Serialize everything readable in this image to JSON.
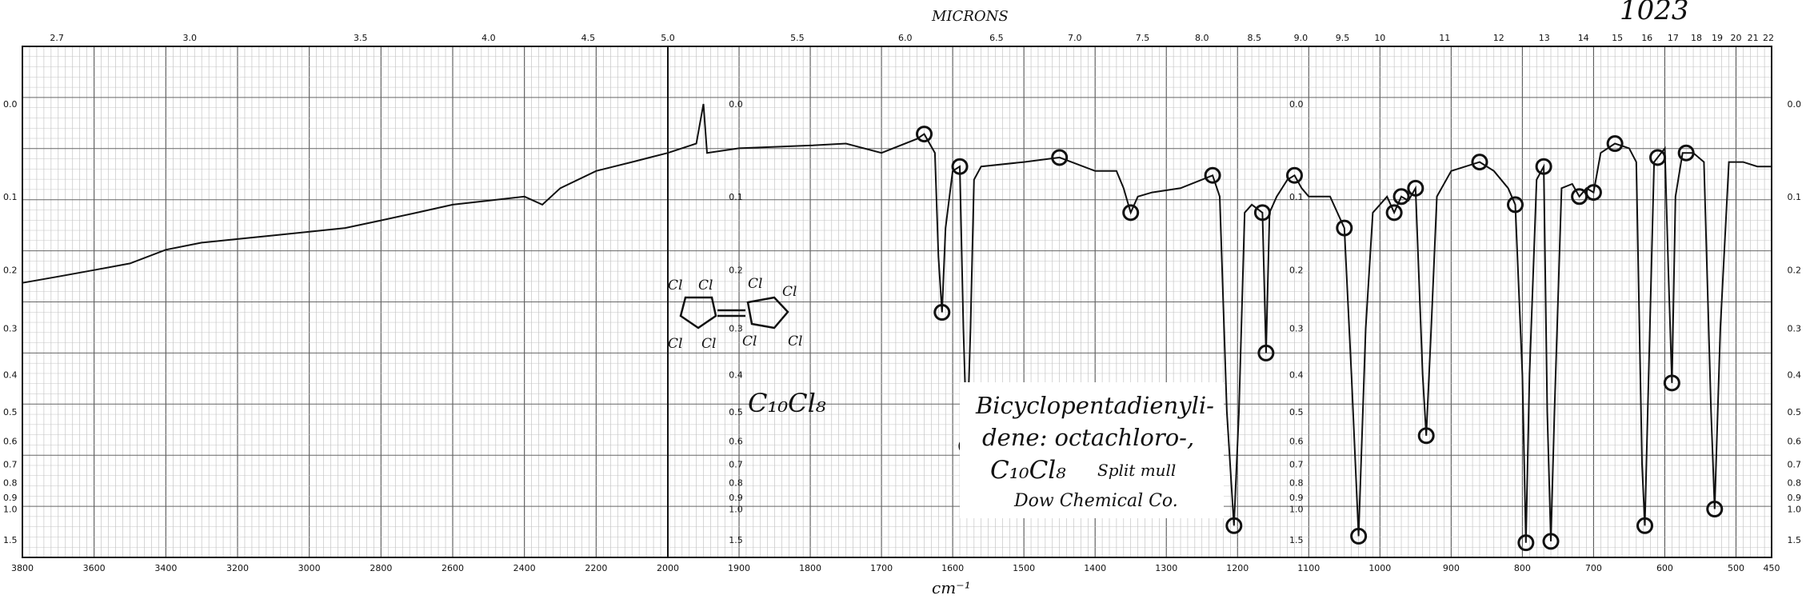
{
  "page": {
    "header": "MICRONS",
    "sheet_number": "1023",
    "footer": "cm⁻¹"
  },
  "annotation": {
    "title_line1": "Bicyclopentadienyli-",
    "title_line2": "dene: octachloro-,",
    "formula": "C₁₀Cl₈",
    "technique": "Split mull",
    "source": "Dow Chemical Co.",
    "sketch_formula": "C₁₀Cl₈",
    "sketch_atom": "Cl"
  },
  "chart_data": {
    "type": "line",
    "title": "",
    "xlabel": "cm⁻¹",
    "ylabel": "",
    "x_axis": {
      "unit": "cm⁻¹",
      "reversed": true,
      "segments": [
        {
          "from": 3800,
          "to": 2000,
          "labels": [
            3800,
            3600,
            3400,
            3200,
            3000,
            2800,
            2600,
            2400,
            2200,
            2000
          ]
        },
        {
          "from": 2000,
          "to": 450,
          "labels": [
            1900,
            1800,
            1700,
            1600,
            1500,
            1400,
            1300,
            1200,
            1100,
            1000,
            900,
            800,
            700,
            600,
            500,
            450
          ]
        }
      ]
    },
    "top_axis": {
      "unit": "microns",
      "labels": [
        "2.7",
        "3.0",
        "3.5",
        "4.0",
        "4.5",
        "5.0",
        "5.5",
        "6.0",
        "6.5",
        "7.0",
        "7.5",
        "8.0",
        "8.5",
        "9.0",
        "9.5",
        "10",
        "11",
        "12",
        "13",
        "14",
        "15",
        "16",
        "17",
        "18",
        "19",
        "20",
        "21",
        "22"
      ]
    },
    "y_axis": {
      "quantity": "absorbance",
      "labels": [
        "0.0",
        "0.1",
        "0.2",
        "0.3",
        "0.4",
        "0.5",
        "0.6",
        "0.7",
        "0.8",
        "0.9",
        "1.0",
        "1.5"
      ],
      "range": [
        0,
        1.6
      ]
    },
    "grid": true,
    "series": [
      {
        "name": "",
        "points": [
          [
            3800,
            0.22
          ],
          [
            3700,
            0.21
          ],
          [
            3600,
            0.2
          ],
          [
            3500,
            0.19
          ],
          [
            3400,
            0.17
          ],
          [
            3300,
            0.16
          ],
          [
            3200,
            0.155
          ],
          [
            3100,
            0.15
          ],
          [
            3000,
            0.145
          ],
          [
            2900,
            0.14
          ],
          [
            2800,
            0.13
          ],
          [
            2700,
            0.12
          ],
          [
            2600,
            0.11
          ],
          [
            2500,
            0.105
          ],
          [
            2400,
            0.1
          ],
          [
            2350,
            0.11
          ],
          [
            2300,
            0.09
          ],
          [
            2200,
            0.07
          ],
          [
            2100,
            0.06
          ],
          [
            2050,
            0.055
          ],
          [
            2000,
            0.05
          ],
          [
            1960,
            0.04
          ],
          [
            1950,
            0.0
          ],
          [
            1945,
            0.05
          ],
          [
            1900,
            0.045
          ],
          [
            1800,
            0.042
          ],
          [
            1750,
            0.04
          ],
          [
            1700,
            0.05
          ],
          [
            1650,
            0.035
          ],
          [
            1640,
            0.03
          ],
          [
            1625,
            0.05
          ],
          [
            1620,
            0.18
          ],
          [
            1615,
            0.27
          ],
          [
            1610,
            0.14
          ],
          [
            1600,
            0.07
          ],
          [
            1590,
            0.065
          ],
          [
            1585,
            0.3
          ],
          [
            1580,
            0.62
          ],
          [
            1575,
            0.3
          ],
          [
            1570,
            0.08
          ],
          [
            1560,
            0.065
          ],
          [
            1500,
            0.06
          ],
          [
            1450,
            0.055
          ],
          [
            1400,
            0.07
          ],
          [
            1370,
            0.07
          ],
          [
            1360,
            0.09
          ],
          [
            1350,
            0.12
          ],
          [
            1340,
            0.1
          ],
          [
            1320,
            0.095
          ],
          [
            1280,
            0.09
          ],
          [
            1250,
            0.08
          ],
          [
            1235,
            0.075
          ],
          [
            1225,
            0.1
          ],
          [
            1215,
            0.5
          ],
          [
            1205,
            1.2
          ],
          [
            1198,
            0.5
          ],
          [
            1190,
            0.12
          ],
          [
            1180,
            0.11
          ],
          [
            1165,
            0.12
          ],
          [
            1160,
            0.35
          ],
          [
            1155,
            0.12
          ],
          [
            1145,
            0.1
          ],
          [
            1130,
            0.08
          ],
          [
            1120,
            0.075
          ],
          [
            1110,
            0.09
          ],
          [
            1100,
            0.1
          ],
          [
            1080,
            0.1
          ],
          [
            1070,
            0.1
          ],
          [
            1050,
            0.14
          ],
          [
            1040,
            0.4
          ],
          [
            1030,
            1.4
          ],
          [
            1020,
            0.3
          ],
          [
            1010,
            0.12
          ],
          [
            1000,
            0.11
          ],
          [
            990,
            0.1
          ],
          [
            980,
            0.12
          ],
          [
            970,
            0.1
          ],
          [
            960,
            0.105
          ],
          [
            950,
            0.09
          ],
          [
            940,
            0.4
          ],
          [
            935,
            0.58
          ],
          [
            928,
            0.3
          ],
          [
            920,
            0.1
          ],
          [
            900,
            0.07
          ],
          [
            880,
            0.065
          ],
          [
            860,
            0.06
          ],
          [
            840,
            0.07
          ],
          [
            820,
            0.09
          ],
          [
            810,
            0.11
          ],
          [
            800,
            0.4
          ],
          [
            795,
            1.6
          ],
          [
            790,
            0.4
          ],
          [
            780,
            0.08
          ],
          [
            770,
            0.065
          ],
          [
            765,
            0.5
          ],
          [
            760,
            1.55
          ],
          [
            755,
            0.5
          ],
          [
            745,
            0.09
          ],
          [
            730,
            0.085
          ],
          [
            720,
            0.1
          ],
          [
            710,
            0.09
          ],
          [
            700,
            0.095
          ],
          [
            690,
            0.05
          ],
          [
            670,
            0.04
          ],
          [
            650,
            0.045
          ],
          [
            640,
            0.06
          ],
          [
            632,
            0.7
          ],
          [
            628,
            1.2
          ],
          [
            624,
            0.5
          ],
          [
            615,
            0.06
          ],
          [
            600,
            0.045
          ],
          [
            595,
            0.2
          ],
          [
            590,
            0.42
          ],
          [
            585,
            0.1
          ],
          [
            575,
            0.05
          ],
          [
            560,
            0.05
          ],
          [
            545,
            0.06
          ],
          [
            535,
            0.5
          ],
          [
            530,
            1.0
          ],
          [
            522,
            0.3
          ],
          [
            510,
            0.06
          ],
          [
            490,
            0.06
          ],
          [
            470,
            0.065
          ],
          [
            450,
            0.065
          ]
        ]
      }
    ],
    "marked_peaks_cm1": [
      1640,
      1615,
      1590,
      1580,
      1450,
      1350,
      1235,
      1205,
      1165,
      1160,
      1120,
      1050,
      1030,
      980,
      970,
      950,
      935,
      860,
      810,
      795,
      770,
      760,
      720,
      700,
      670,
      628,
      610,
      590,
      570,
      530
    ]
  }
}
